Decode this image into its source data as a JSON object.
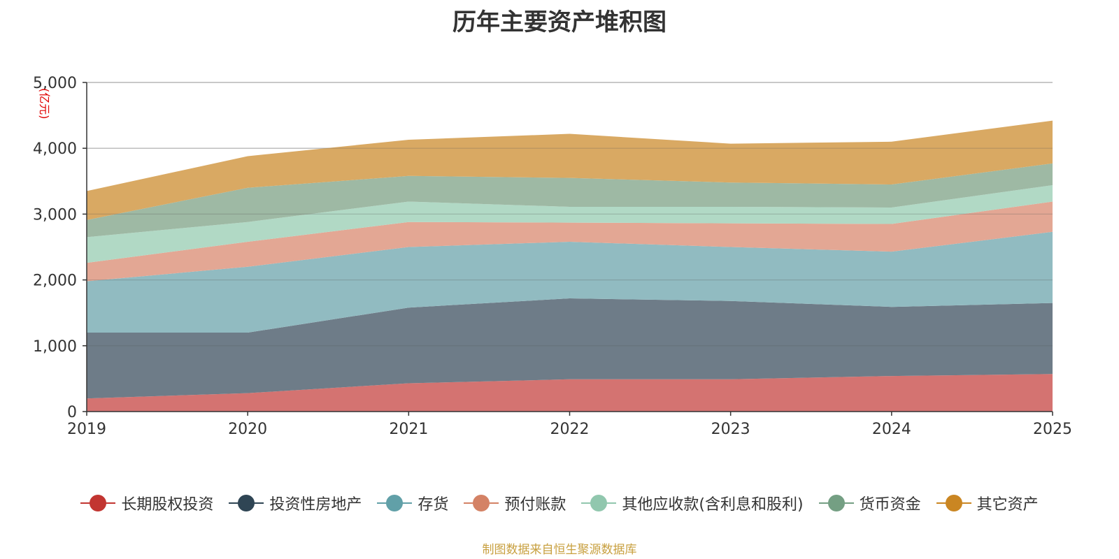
{
  "chart_data": {
    "type": "area",
    "stacked": true,
    "title": "历年主要资产堆积图",
    "ylabel": "(亿元)",
    "xlabel": "",
    "ylim": [
      0,
      5000
    ],
    "yticks": [
      0,
      1000,
      2000,
      3000,
      4000,
      5000
    ],
    "ytick_labels": [
      "0",
      "1,000",
      "2,000",
      "3,000",
      "4,000",
      "5,000"
    ],
    "categories": [
      "2019",
      "2020",
      "2021",
      "2022",
      "2023",
      "2024",
      "2025"
    ],
    "grid": true,
    "legend_position": "bottom",
    "series": [
      {
        "name": "长期股权投资",
        "color": "#d47371",
        "legend_color": "#c23531",
        "values": [
          200,
          280,
          430,
          490,
          490,
          540,
          570
        ]
      },
      {
        "name": "投资性房地产",
        "color": "#6e7c88",
        "legend_color": "#2f4554",
        "values": [
          1000,
          920,
          1150,
          1230,
          1190,
          1050,
          1080
        ]
      },
      {
        "name": "存货",
        "color": "#91bbc1",
        "legend_color": "#61a0a8",
        "values": [
          780,
          1000,
          920,
          860,
          820,
          840,
          1080
        ]
      },
      {
        "name": "预付账款",
        "color": "#e3a794",
        "legend_color": "#d48265",
        "values": [
          280,
          380,
          380,
          290,
          360,
          420,
          460
        ]
      },
      {
        "name": "其他应收款(含利息和股利)",
        "color": "#b1d9c5",
        "legend_color": "#91c7ae",
        "values": [
          390,
          300,
          310,
          240,
          250,
          250,
          250
        ]
      },
      {
        "name": "货币资金",
        "color": "#9eb9a4",
        "legend_color": "#749f83",
        "values": [
          260,
          520,
          390,
          440,
          370,
          350,
          330
        ]
      },
      {
        "name": "其它资产",
        "color": "#d9a963",
        "legend_color": "#ca8622",
        "values": [
          440,
          480,
          550,
          670,
          590,
          650,
          650
        ]
      }
    ]
  },
  "source_note": "制图数据来自恒生聚源数据库"
}
